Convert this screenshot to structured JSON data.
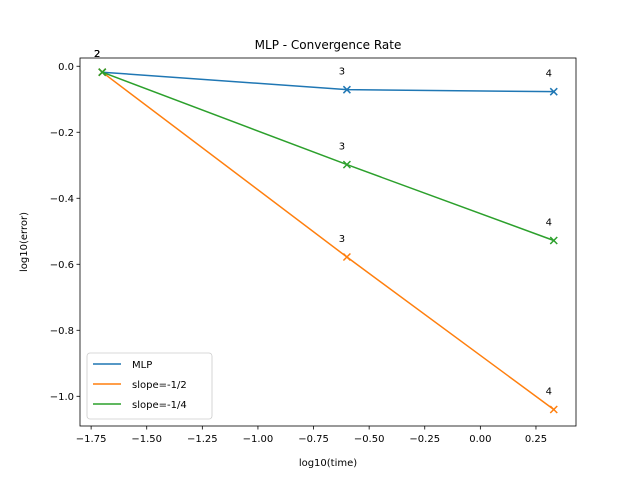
{
  "chart_data": {
    "type": "line",
    "title": "MLP - Convergence Rate",
    "xlabel": "log10(time)",
    "ylabel": "log10(error)",
    "xlim": [
      -1.8,
      0.43
    ],
    "ylim": [
      -1.09,
      0.025
    ],
    "xticks": [
      -1.75,
      -1.5,
      -1.25,
      -1.0,
      -0.75,
      -0.5,
      -0.25,
      0.0,
      0.25
    ],
    "xtick_labels": [
      "−1.75",
      "−1.50",
      "−1.25",
      "−1.00",
      "−0.75",
      "−0.50",
      "−0.25",
      "0.00",
      "0.25"
    ],
    "yticks": [
      0.0,
      -0.2,
      -0.4,
      -0.6,
      -0.8,
      -1.0
    ],
    "ytick_labels": [
      "0.0",
      "−0.2",
      "−0.4",
      "−0.6",
      "−0.8",
      "−1.0"
    ],
    "legend_position": "lower-left",
    "grid": false,
    "series": [
      {
        "name": "MLP",
        "color": "#1f77b4",
        "x": [
          -1.7,
          -0.6,
          0.33
        ],
        "y": [
          -0.018,
          -0.071,
          -0.077
        ],
        "labels": [
          "2",
          "3",
          "4"
        ]
      },
      {
        "name": "slope=-1/2",
        "color": "#ff7f0e",
        "x": [
          -1.7,
          -0.6,
          0.33
        ],
        "y": [
          -0.018,
          -0.578,
          -1.04
        ],
        "labels": [
          "2",
          "3",
          "4"
        ]
      },
      {
        "name": "slope=-1/4",
        "color": "#2ca02c",
        "x": [
          -1.7,
          -0.6,
          0.33
        ],
        "y": [
          -0.018,
          -0.298,
          -0.528
        ],
        "labels": [
          "2",
          "3",
          "4"
        ]
      }
    ]
  }
}
